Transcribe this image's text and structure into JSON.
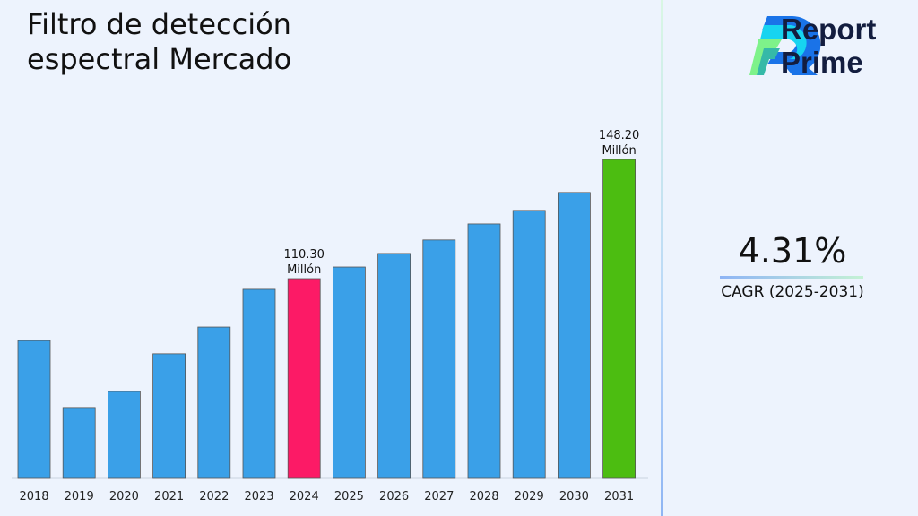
{
  "title": "Filtro de detección espectral Mercado",
  "brand": {
    "line1": "Report",
    "line2": "Prime"
  },
  "cagr": {
    "value": "4.31%",
    "label": "CAGR (2025-2031)"
  },
  "chart_data": {
    "type": "bar",
    "title": "Filtro de detección espectral Mercado",
    "categories": [
      "2018",
      "2019",
      "2020",
      "2021",
      "2022",
      "2023",
      "2024",
      "2025",
      "2026",
      "2027",
      "2028",
      "2029",
      "2030",
      "2031"
    ],
    "values": [
      90.6,
      69.3,
      74.4,
      86.4,
      94.9,
      106.9,
      110.3,
      114.0,
      118.3,
      122.6,
      127.7,
      132.0,
      137.7,
      148.2
    ],
    "colors": [
      "#3aa0e8",
      "#3aa0e8",
      "#3aa0e8",
      "#3aa0e8",
      "#3aa0e8",
      "#3aa0e8",
      "#fc1a66",
      "#3aa0e8",
      "#3aa0e8",
      "#3aa0e8",
      "#3aa0e8",
      "#3aa0e8",
      "#3aa0e8",
      "#4cbd11"
    ],
    "ylim": [
      46.75,
      152
    ],
    "grid": false,
    "annotations": [
      {
        "category": "2024",
        "value": "110.30",
        "unit": "Millón"
      },
      {
        "category": "2031",
        "value": "148.20",
        "unit": "Millón"
      }
    ]
  }
}
